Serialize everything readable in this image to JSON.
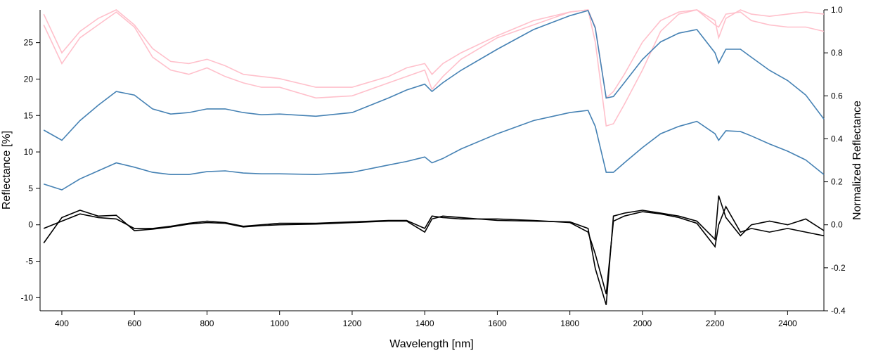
{
  "chart_data": {
    "type": "line",
    "xlabel": "Wavelength [nm]",
    "ylabel": "Reflectance [%]",
    "y2label": "Normalized Reflectance",
    "x": [
      350,
      400,
      450,
      500,
      550,
      600,
      650,
      700,
      750,
      800,
      850,
      900,
      950,
      1000,
      1100,
      1200,
      1300,
      1350,
      1400,
      1420,
      1450,
      1500,
      1600,
      1700,
      1800,
      1850,
      1870,
      1900,
      1920,
      1950,
      2000,
      2050,
      2100,
      2150,
      2200,
      2210,
      2230,
      2270,
      2300,
      2350,
      2400,
      2450,
      2500
    ],
    "xlim": [
      340,
      2500
    ],
    "xticks": [
      400,
      600,
      800,
      1000,
      1200,
      1400,
      1600,
      1800,
      2000,
      2200,
      2400
    ],
    "ylim": [
      -11.8,
      29.5
    ],
    "yticks": [
      -10,
      -5,
      0,
      5,
      10,
      15,
      20,
      25
    ],
    "y2lim": [
      -0.4,
      1.0
    ],
    "y2ticks": [
      -0.4,
      -0.2,
      {
        "value": 0,
        "label": "0.0"
      },
      0.2,
      0.4,
      0.6,
      0.8,
      {
        "value": 1,
        "label": "1.0"
      }
    ],
    "grid": false,
    "series": [
      {
        "color": "#ffc0cb",
        "axis": "y2",
        "values": [
          0.98,
          0.8,
          0.9,
          0.96,
          1.0,
          0.93,
          0.82,
          0.76,
          0.75,
          0.77,
          0.74,
          0.7,
          0.69,
          0.68,
          0.64,
          0.64,
          0.69,
          0.73,
          0.75,
          0.7,
          0.75,
          0.8,
          0.88,
          0.95,
          0.99,
          1.0,
          0.92,
          0.59,
          0.62,
          0.7,
          0.85,
          0.95,
          0.99,
          1.0,
          0.95,
          0.87,
          0.96,
          1.0,
          0.98,
          0.97,
          0.98,
          0.99,
          0.98
        ]
      },
      {
        "color": "#ffc0cb",
        "axis": "y2",
        "values": [
          0.93,
          0.75,
          0.87,
          0.93,
          0.99,
          0.92,
          0.78,
          0.72,
          0.7,
          0.73,
          0.69,
          0.66,
          0.64,
          0.64,
          0.59,
          0.6,
          0.66,
          0.69,
          0.72,
          0.63,
          0.69,
          0.77,
          0.87,
          0.93,
          0.99,
          1.0,
          0.85,
          0.46,
          0.47,
          0.56,
          0.72,
          0.9,
          0.98,
          1.0,
          0.93,
          0.92,
          0.98,
          0.99,
          0.95,
          0.93,
          0.92,
          0.92,
          0.9
        ]
      },
      {
        "color": "#4682b4",
        "values": [
          13.0,
          11.6,
          14.3,
          16.4,
          18.3,
          17.8,
          15.9,
          15.2,
          15.4,
          15.9,
          15.9,
          15.4,
          15.1,
          15.2,
          14.9,
          15.4,
          17.4,
          18.5,
          19.3,
          18.3,
          19.5,
          21.2,
          24.1,
          26.8,
          28.7,
          29.4,
          27.0,
          17.4,
          17.6,
          19.5,
          22.7,
          25.1,
          26.3,
          26.8,
          23.6,
          22.2,
          24.1,
          24.1,
          23.0,
          21.2,
          19.8,
          17.8,
          14.5
        ]
      },
      {
        "color": "#4682b4",
        "values": [
          5.6,
          4.8,
          6.3,
          7.4,
          8.5,
          7.9,
          7.2,
          6.9,
          6.9,
          7.3,
          7.4,
          7.1,
          7.0,
          7.0,
          6.9,
          7.2,
          8.2,
          8.7,
          9.3,
          8.5,
          9.1,
          10.4,
          12.5,
          14.3,
          15.4,
          15.7,
          13.5,
          7.2,
          7.2,
          8.5,
          10.6,
          12.5,
          13.5,
          14.2,
          12.5,
          11.6,
          12.9,
          12.8,
          12.2,
          11.1,
          10.1,
          8.9,
          6.9
        ]
      },
      {
        "color": "#000000",
        "values": [
          -0.5,
          0.5,
          1.5,
          1.0,
          0.8,
          -0.5,
          -0.5,
          -0.2,
          0.2,
          0.5,
          0.3,
          -0.2,
          0.0,
          0.2,
          0.2,
          0.4,
          0.6,
          0.6,
          -0.5,
          1.2,
          1.0,
          0.8,
          0.8,
          0.6,
          0.3,
          -1.0,
          -4.0,
          -9.5,
          0.5,
          1.2,
          1.8,
          1.5,
          1.0,
          0.2,
          -3.0,
          0.0,
          2.5,
          -1.0,
          -0.5,
          -1.0,
          -0.5,
          -1.0,
          -1.5
        ]
      },
      {
        "color": "#000000",
        "values": [
          -2.5,
          1.0,
          2.0,
          1.2,
          1.3,
          -0.8,
          -0.6,
          -0.3,
          0.1,
          0.3,
          0.2,
          -0.3,
          -0.1,
          0.0,
          0.1,
          0.3,
          0.5,
          0.5,
          -1.0,
          0.8,
          1.2,
          1.0,
          0.6,
          0.5,
          0.4,
          -0.5,
          -6.0,
          -11.0,
          1.2,
          1.6,
          2.0,
          1.6,
          1.2,
          0.5,
          -2.0,
          4.0,
          1.0,
          -1.5,
          0.0,
          0.5,
          0.0,
          0.8,
          -0.8
        ]
      }
    ]
  }
}
